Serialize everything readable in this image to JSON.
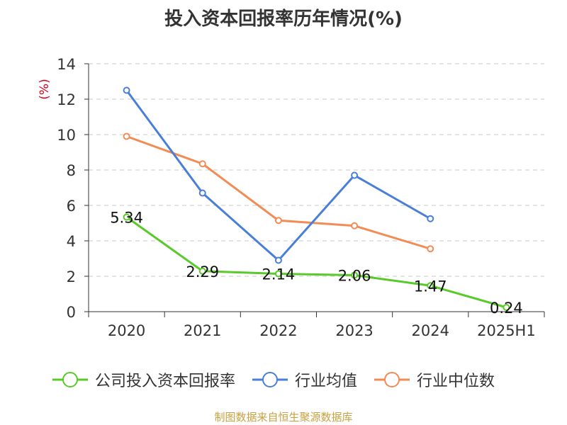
{
  "chart_data": {
    "type": "line",
    "title": "投入资本回报率历年情况(%)",
    "ylabel": "(%)",
    "xlabel": "",
    "categories": [
      "2020",
      "2021",
      "2022",
      "2023",
      "2024",
      "2025H1"
    ],
    "ylim": [
      0,
      14
    ],
    "yticks": [
      0,
      2,
      4,
      6,
      8,
      10,
      12,
      14
    ],
    "grid": true,
    "legend_position": "bottom",
    "series": [
      {
        "name": "公司投入资本回报率",
        "color": "#5ac92a",
        "values": [
          5.34,
          2.29,
          2.14,
          2.06,
          1.47,
          0.24
        ],
        "labels": [
          "5.34",
          "2.29",
          "2.14",
          "2.06",
          "1.47",
          "0.24"
        ]
      },
      {
        "name": "行业均值",
        "color": "#4a7fd8",
        "values": [
          12.5,
          6.7,
          2.9,
          7.7,
          5.25,
          null
        ]
      },
      {
        "name": "行业中位数",
        "color": "#f28b54",
        "values": [
          9.9,
          8.35,
          5.15,
          4.85,
          3.55,
          null
        ]
      }
    ]
  },
  "footer": {
    "source": "制图数据来自恒生聚源数据库"
  }
}
